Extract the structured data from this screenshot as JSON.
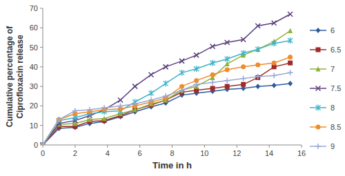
{
  "chart_data": {
    "type": "line",
    "y_label": "Cumulative percentage of Ciprofloxacin release",
    "x_label": "Time in h",
    "x": [
      0,
      1,
      2,
      2.9,
      3.8,
      4.8,
      5.7,
      6.7,
      7.6,
      8.6,
      9.5,
      10.5,
      11.4,
      12.4,
      13.3,
      14.3,
      15.3
    ],
    "xlim": [
      0,
      16
    ],
    "xticks": [
      0,
      2,
      4,
      6,
      8,
      10,
      12,
      14,
      16
    ],
    "ylim": [
      0,
      70
    ],
    "yticks": [
      0,
      10,
      20,
      30,
      40,
      50,
      60,
      70
    ],
    "grid": false,
    "legend": "right",
    "series": [
      {
        "name": "6",
        "color": "#2e5c9a",
        "marker": "diamond",
        "values": [
          0,
          8.5,
          9,
          11,
          12,
          14.5,
          17,
          19.5,
          21.5,
          25.5,
          26.5,
          27.5,
          28.5,
          29,
          30,
          30.5,
          31.5
        ]
      },
      {
        "name": "6.5",
        "color": "#a0292a",
        "marker": "square",
        "values": [
          0,
          9.5,
          9.5,
          12,
          12.5,
          15,
          18,
          20.5,
          23,
          27,
          28,
          29,
          30,
          31,
          34.5,
          40,
          42
        ]
      },
      {
        "name": "7",
        "color": "#8db33a",
        "marker": "triangle",
        "values": [
          0,
          10.5,
          11,
          13,
          13.5,
          16,
          18,
          21,
          23,
          28,
          30,
          34.5,
          41.5,
          46,
          49,
          53,
          58.5
        ]
      },
      {
        "name": "7.5",
        "color": "#5b3f7d",
        "marker": "x",
        "values": [
          0,
          11,
          12.5,
          15,
          18,
          23,
          30,
          36,
          40,
          43,
          46,
          50.5,
          52.5,
          54,
          61,
          62.5,
          67
        ]
      },
      {
        "name": "8",
        "color": "#3bb3c9",
        "marker": "star",
        "values": [
          0,
          12.5,
          14,
          16,
          17,
          17.5,
          22,
          26.5,
          31.5,
          37,
          39,
          42,
          44,
          47,
          49,
          52,
          53.5
        ]
      },
      {
        "name": "8.5",
        "color": "#f08c2c",
        "marker": "circle",
        "values": [
          0,
          13,
          16,
          17,
          18,
          18.5,
          20,
          22,
          24,
          30,
          33,
          36,
          38.5,
          40,
          41,
          42,
          45
        ]
      },
      {
        "name": "9",
        "color": "#98a8d8",
        "marker": "plus",
        "values": [
          0,
          13,
          17.5,
          18,
          19,
          20,
          21,
          23,
          25,
          28,
          31,
          32,
          33,
          34,
          35,
          35.5,
          37
        ]
      }
    ]
  }
}
